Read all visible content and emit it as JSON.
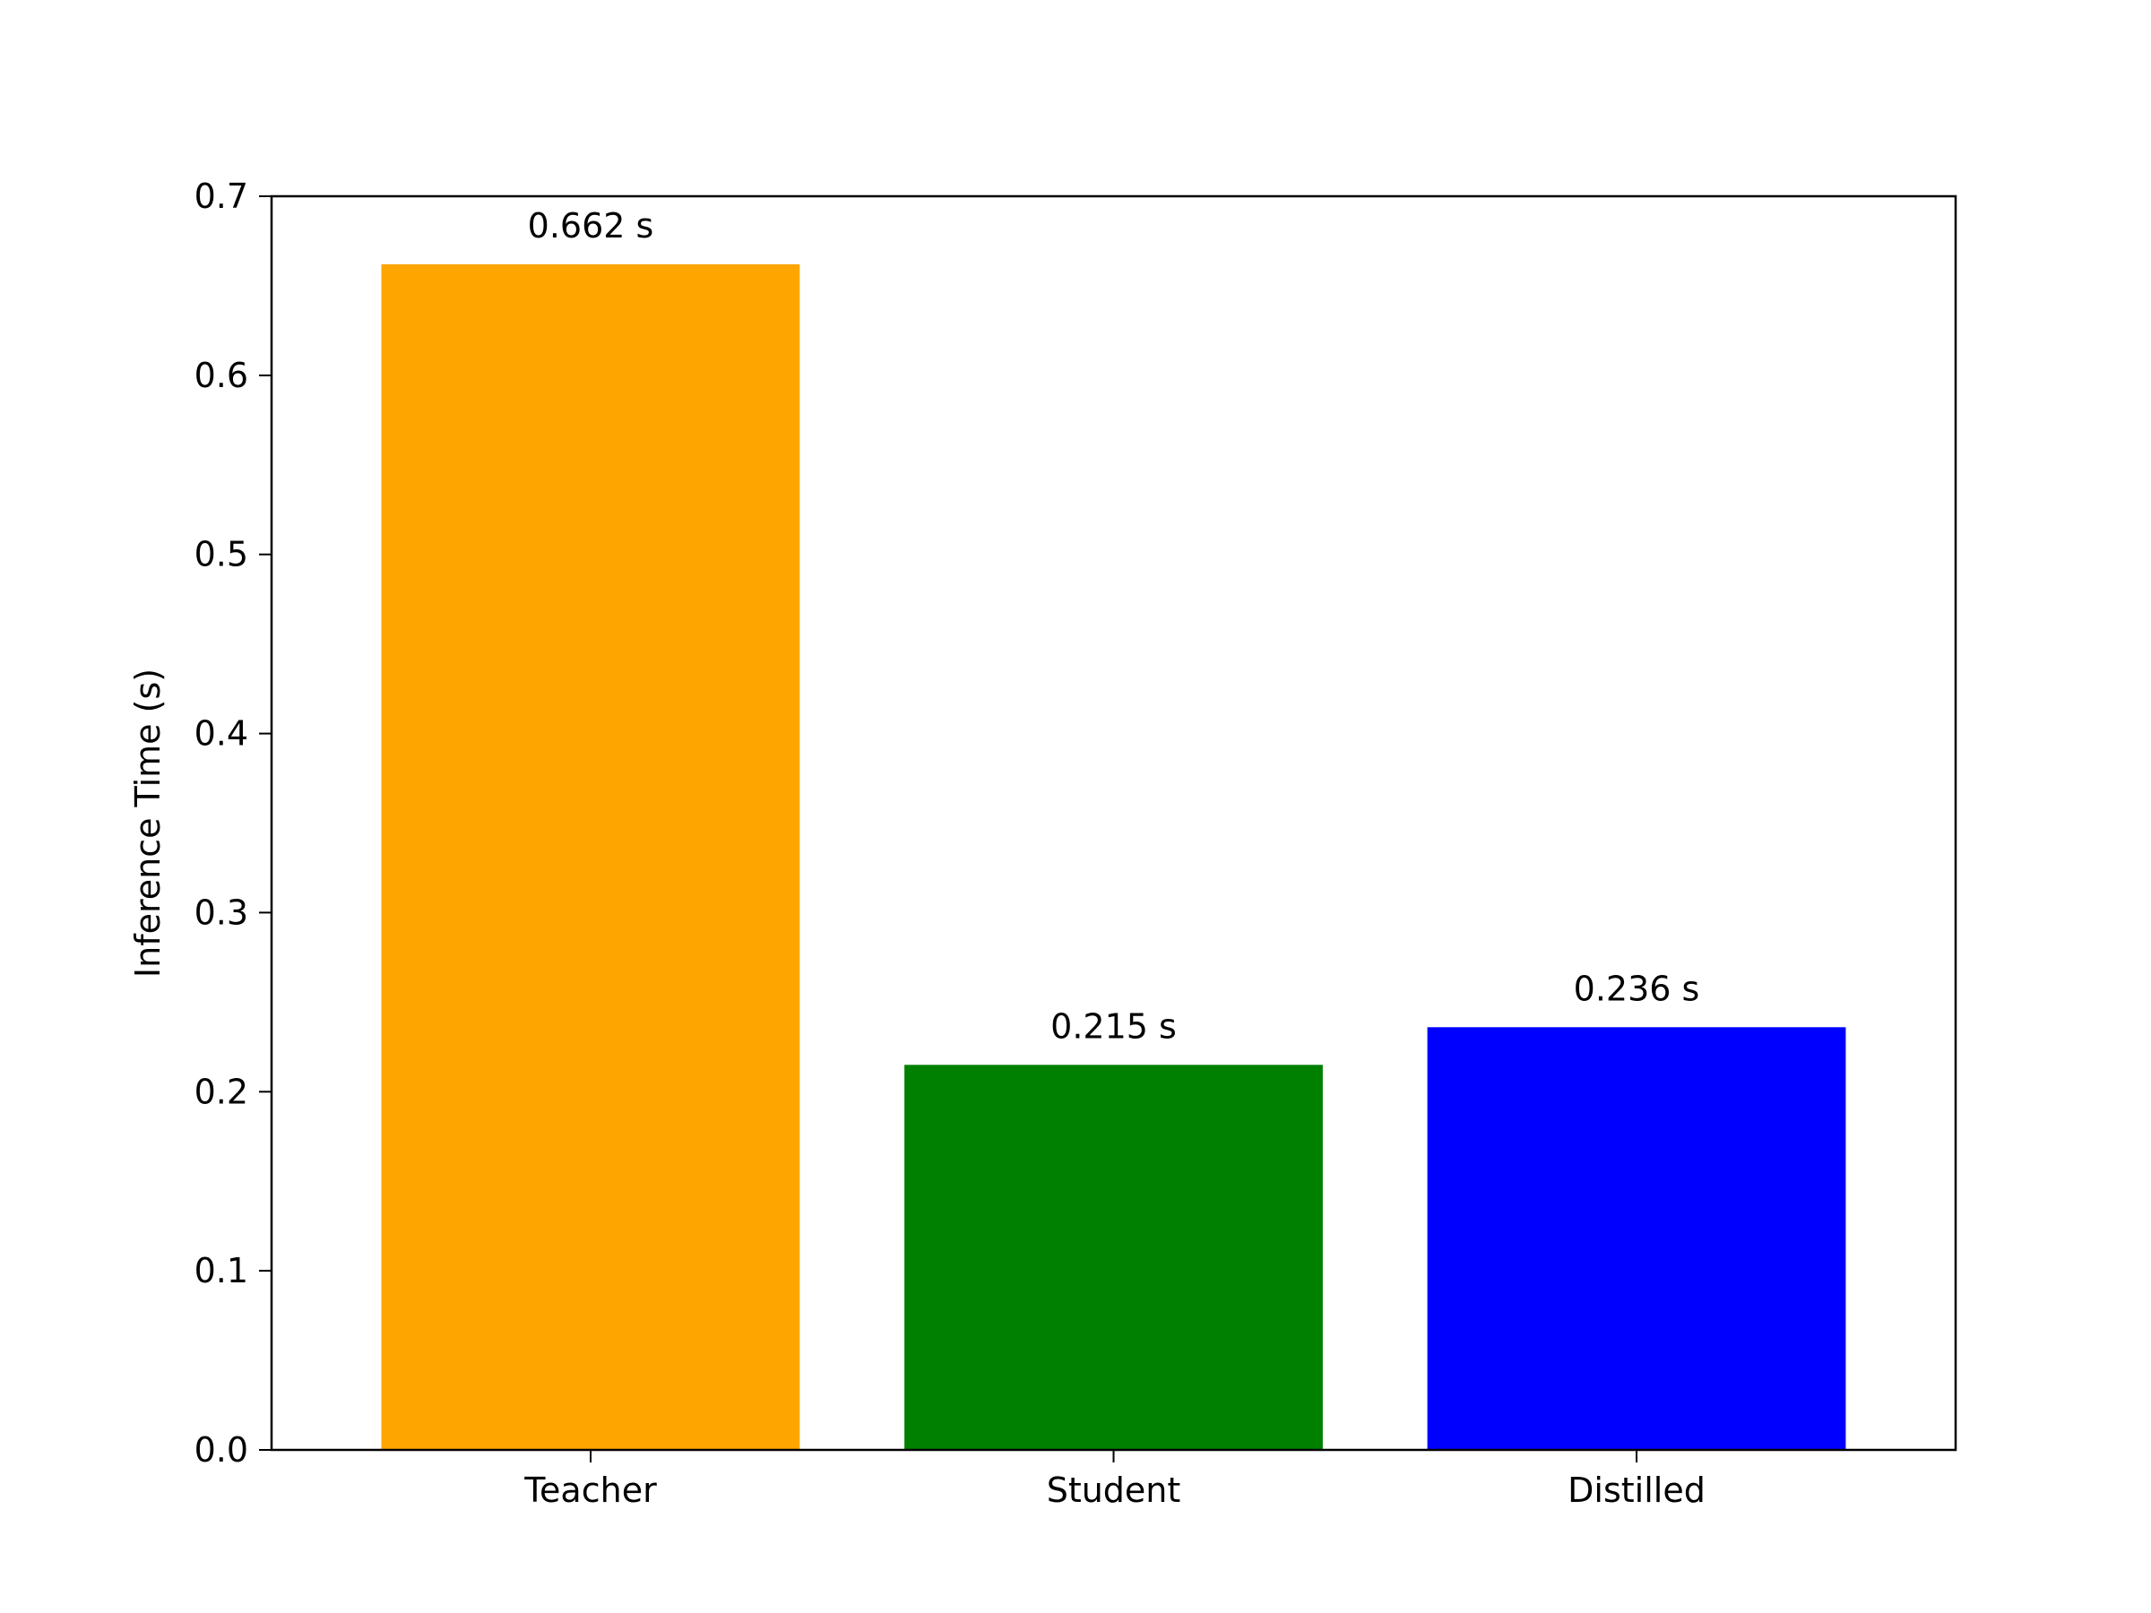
{
  "chart_data": {
    "type": "bar",
    "title": "",
    "xlabel": "",
    "ylabel": "Inference Time (s)",
    "ylim": [
      0,
      0.7
    ],
    "yticks": [
      0.0,
      0.1,
      0.2,
      0.3,
      0.4,
      0.5,
      0.6,
      0.7
    ],
    "ytick_labels": [
      "0.0",
      "0.1",
      "0.2",
      "0.3",
      "0.4",
      "0.5",
      "0.6",
      "0.7"
    ],
    "categories": [
      "Teacher",
      "Student",
      "Distilled"
    ],
    "values": [
      0.662,
      0.215,
      0.236
    ],
    "data_labels": [
      "0.662 s",
      "0.215 s",
      "0.236 s"
    ],
    "colors": [
      "#FFA500",
      "#008000",
      "#0000FF"
    ],
    "grid": false,
    "legend": "none"
  }
}
